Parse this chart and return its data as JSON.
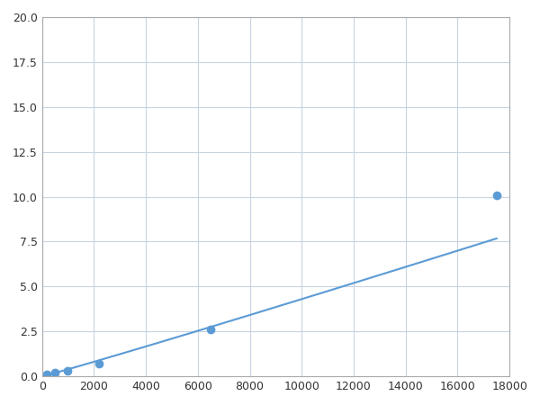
{
  "x": [
    200,
    500,
    1000,
    2200,
    6500,
    17500
  ],
  "y": [
    0.1,
    0.2,
    0.3,
    0.7,
    2.6,
    10.1
  ],
  "line_color": "#5b9bd5",
  "marker_color": "#5b9bd5",
  "marker_size": 6,
  "line_width": 1.5,
  "xlim": [
    0,
    18000
  ],
  "ylim": [
    0,
    20
  ],
  "xticks": [
    0,
    2000,
    4000,
    6000,
    8000,
    10000,
    12000,
    14000,
    16000,
    18000
  ],
  "yticks": [
    0.0,
    2.5,
    5.0,
    7.5,
    10.0,
    12.5,
    15.0,
    17.5,
    20.0
  ],
  "grid_color": "#c8d4e0",
  "background_color": "#ffffff",
  "spine_color": "#aaaaaa",
  "fig_bg_color": "#ffffff"
}
